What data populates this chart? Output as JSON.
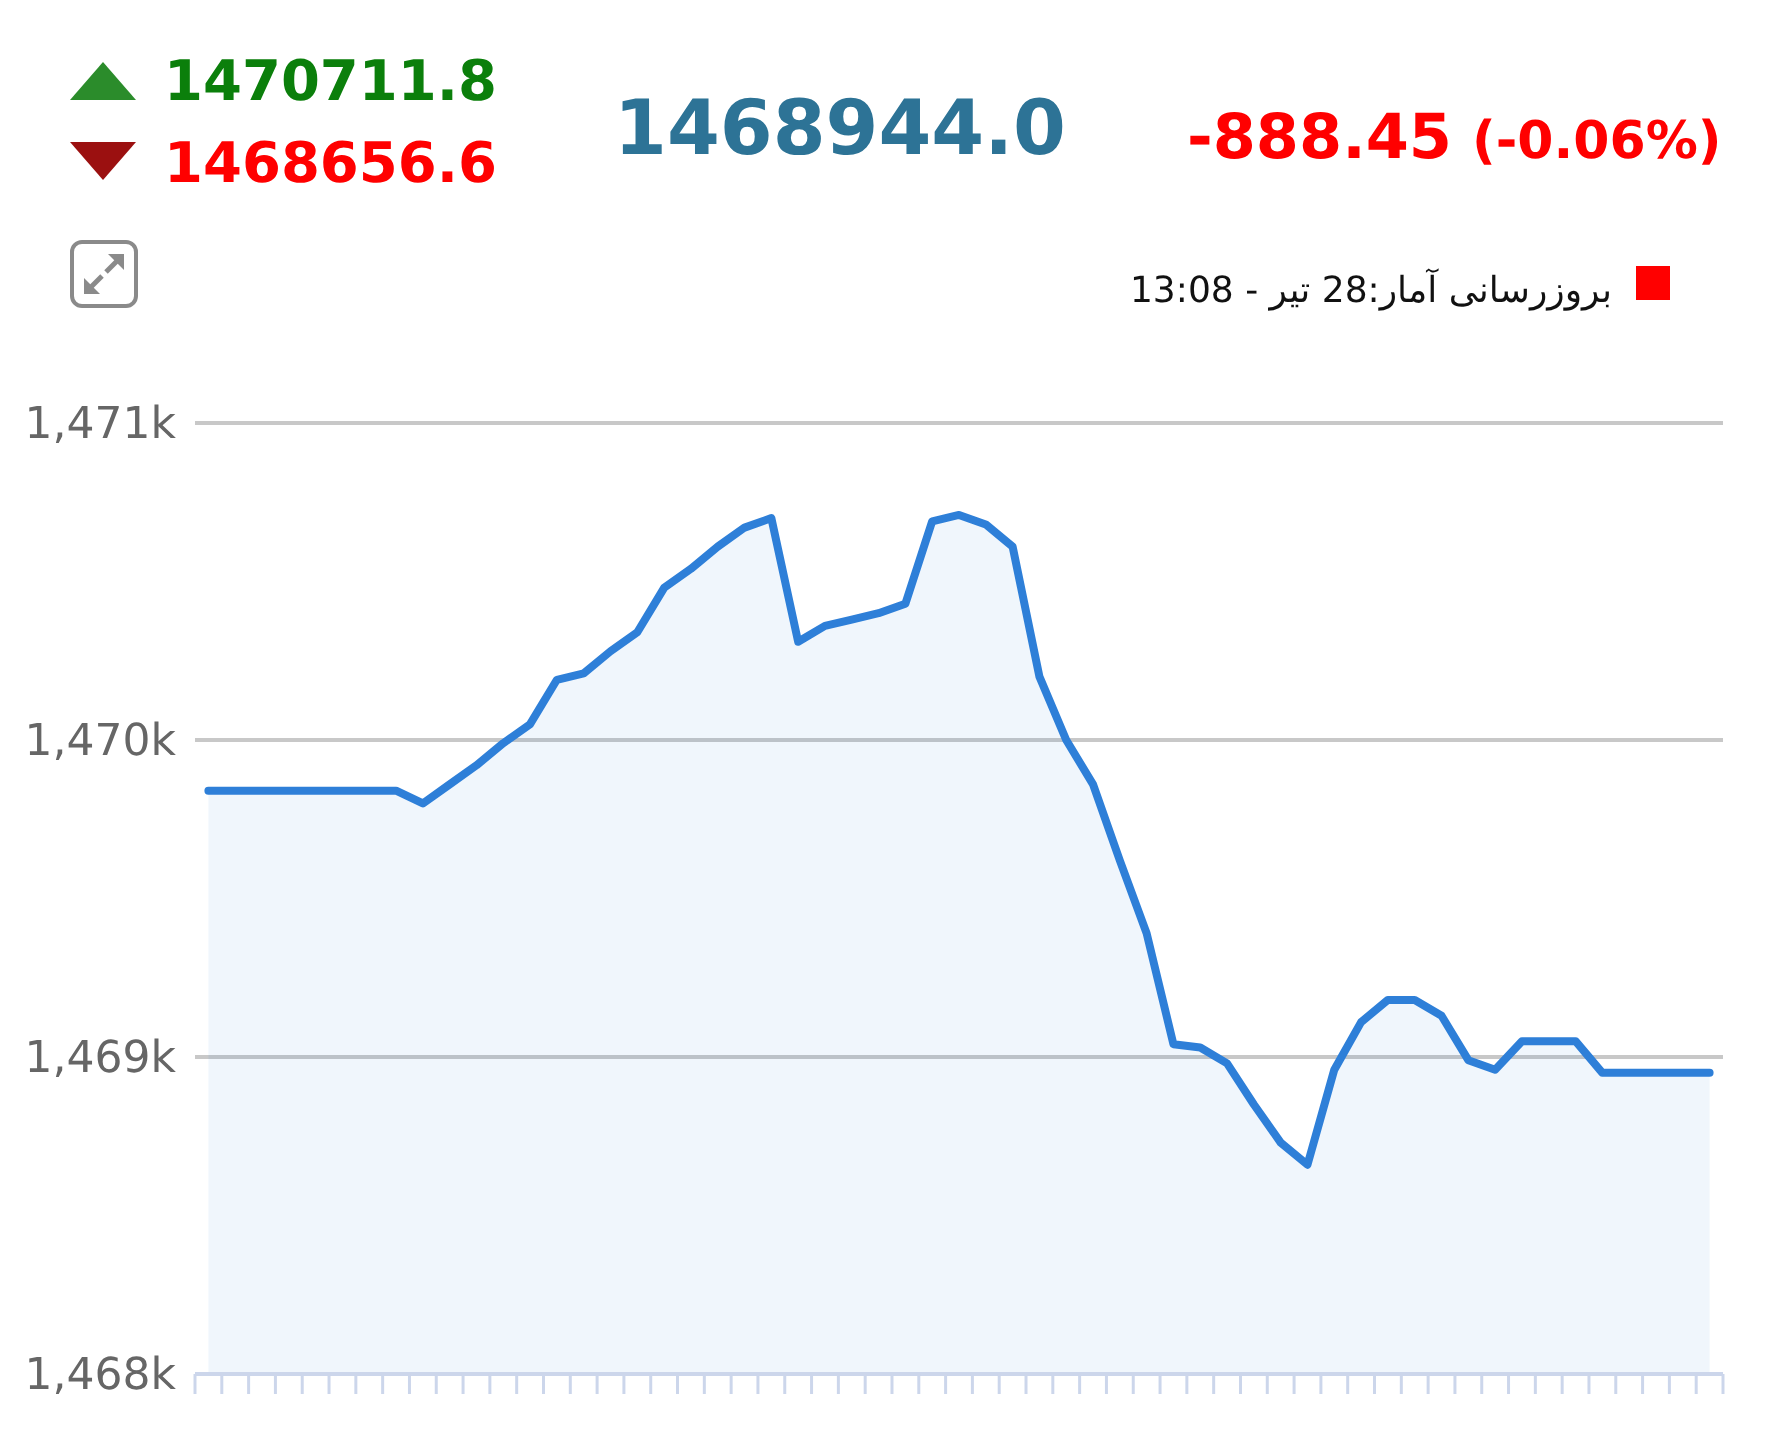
{
  "chart_data": {
    "type": "area",
    "title": "1468944.0",
    "annotations": [
      "1470711.8",
      "1468656.6",
      "-888.45",
      "(-0.06%)",
      "بروزرسانی آمار:28 تیر - 13:08"
    ],
    "categories": [
      null,
      null,
      null,
      null,
      null,
      null,
      null,
      null,
      null,
      null,
      null,
      null,
      null,
      null,
      null,
      null,
      null,
      null,
      null,
      null,
      null,
      null,
      null,
      null,
      null,
      null,
      null,
      null,
      null,
      null,
      null,
      null,
      null,
      null,
      null,
      null,
      null,
      null,
      null,
      null,
      null,
      null,
      null,
      null,
      null,
      null,
      null,
      null,
      null,
      null,
      null,
      null,
      null,
      null,
      null,
      null,
      null
    ],
    "series": [
      {
        "color": "#2e7fd8",
        "values": [
          1469840,
          1469840,
          1469840,
          1469840,
          1469840,
          1469840,
          1469840,
          1469840,
          1469800,
          1469860,
          1469920,
          1469990,
          1470050,
          1470190,
          1470210,
          1470280,
          1470340,
          1470480,
          1470540,
          1470610,
          1470670,
          1470700,
          1470310,
          1470360,
          1470380,
          1470400,
          1470430,
          1470690,
          1470710,
          1470680,
          1470610,
          1470200,
          1470000,
          1469860,
          1469620,
          1469390,
          1469040,
          1469030,
          1468980,
          1468850,
          1468730,
          1468660,
          1468960,
          1469110,
          1469180,
          1469180,
          1469130,
          1468990,
          1468960,
          1469050,
          1469050,
          1469050,
          1468950,
          1468950,
          1468950,
          1468950,
          1468950
        ]
      }
    ],
    "ylim": [
      1468000,
      1471000
    ],
    "yticks": [
      {
        "value": 1468000,
        "label": "1,468k"
      },
      {
        "value": 1469000,
        "label": "1,469k"
      },
      {
        "value": 1470000,
        "label": "1,470k"
      },
      {
        "value": 1471000,
        "label": "1,471k"
      }
    ],
    "grid": "y",
    "tick_labels": "y"
  }
}
